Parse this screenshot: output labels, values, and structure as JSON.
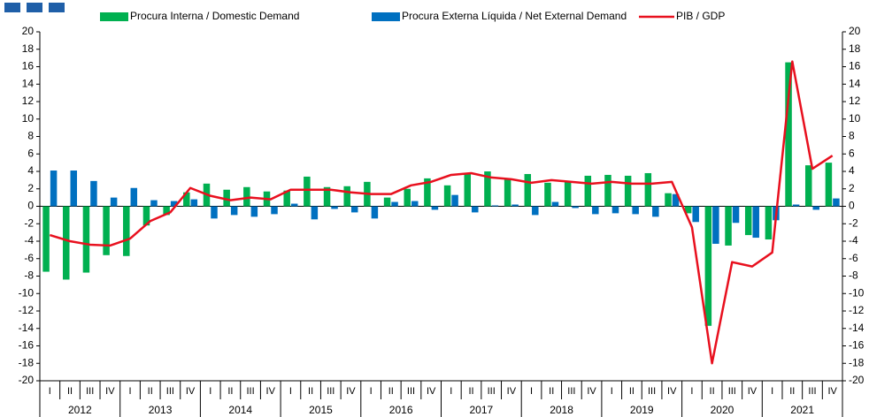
{
  "chart_data": {
    "type": "bar-line",
    "categories": [
      "I",
      "II",
      "III",
      "IV",
      "I",
      "II",
      "III",
      "IV",
      "I",
      "II",
      "III",
      "IV",
      "I",
      "II",
      "III",
      "IV",
      "I",
      "II",
      "III",
      "IV",
      "I",
      "II",
      "III",
      "IV",
      "I",
      "II",
      "III",
      "IV",
      "I",
      "II",
      "III",
      "IV",
      "I",
      "II",
      "III",
      "IV",
      "I",
      "II",
      "III",
      "IV"
    ],
    "years": [
      "2012",
      "2013",
      "2014",
      "2015",
      "2016",
      "2017",
      "2018",
      "2019",
      "2020",
      "2021"
    ],
    "series": [
      {
        "name": "Procura Interna / Domestic Demand",
        "color": "#00b050",
        "kind": "bar",
        "values": [
          -7.5,
          -8.4,
          -7.6,
          -5.6,
          -5.7,
          -2.2,
          -1.0,
          1.6,
          2.6,
          1.9,
          2.2,
          1.7,
          1.8,
          3.4,
          2.2,
          2.3,
          2.8,
          1.0,
          2.0,
          3.2,
          2.4,
          3.7,
          4.0,
          3.1,
          3.7,
          2.7,
          2.9,
          3.5,
          3.6,
          3.5,
          3.8,
          1.5,
          -0.8,
          -13.7,
          -4.5,
          -3.3,
          -3.8,
          16.5,
          4.7,
          5.0
        ]
      },
      {
        "name": "Procura Externa Líquida / Net External Demand",
        "color": "#0070c0",
        "kind": "bar",
        "values": [
          4.1,
          4.1,
          2.9,
          1.0,
          2.1,
          0.7,
          0.6,
          0.8,
          -1.4,
          -1.0,
          -1.2,
          -0.9,
          0.3,
          -1.5,
          -0.3,
          -0.7,
          -1.4,
          0.5,
          0.6,
          -0.4,
          1.3,
          -0.7,
          0.1,
          0.2,
          -1.0,
          0.5,
          -0.2,
          -0.9,
          -0.8,
          -0.9,
          -1.2,
          1.4,
          -1.8,
          -4.3,
          -1.9,
          -3.6,
          -1.6,
          0.2,
          -0.4,
          0.9
        ]
      },
      {
        "name": "PIB / GDP",
        "color": "#e8101e",
        "kind": "line",
        "values": [
          -3.3,
          -4.0,
          -4.4,
          -4.5,
          -3.7,
          -1.7,
          -0.7,
          2.1,
          1.2,
          0.7,
          1.0,
          0.8,
          1.9,
          1.9,
          1.9,
          1.6,
          1.4,
          1.4,
          2.4,
          2.8,
          3.6,
          3.8,
          3.3,
          3.1,
          2.7,
          3.0,
          2.8,
          2.6,
          2.8,
          2.6,
          2.6,
          2.8,
          -2.4,
          -18.0,
          -6.4,
          -6.9,
          -5.3,
          16.6,
          4.3,
          5.8
        ]
      }
    ],
    "ylim": [
      -20,
      20
    ],
    "yticks": [
      -20,
      -18,
      -16,
      -14,
      -12,
      -10,
      -8,
      -6,
      -4,
      -2,
      0,
      2,
      4,
      6,
      8,
      10,
      12,
      14,
      16,
      18,
      20
    ],
    "y2lim": [
      -20,
      20
    ],
    "y2ticks": [
      -20,
      -18,
      -16,
      -14,
      -12,
      -10,
      -8,
      -6,
      -4,
      -2,
      0,
      2,
      4,
      6,
      8,
      10,
      12,
      14,
      16,
      18,
      20
    ],
    "grid": false
  }
}
